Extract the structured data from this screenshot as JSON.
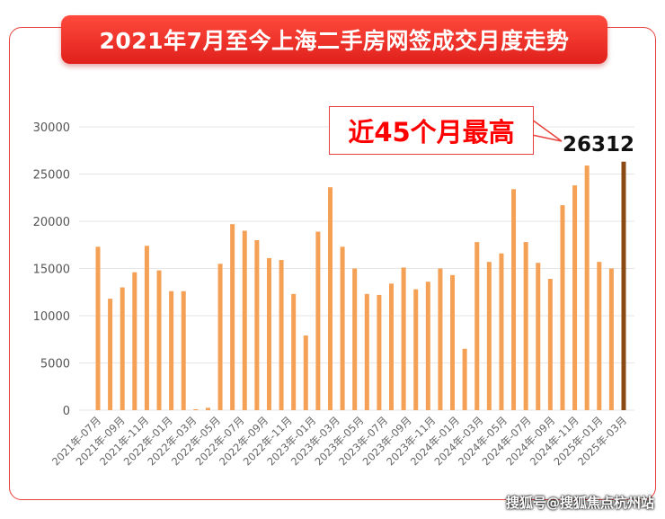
{
  "title": "2021年7月至今上海二手房网签成交月度走势",
  "annotation": {
    "label": "近45个月最高",
    "value": "26312"
  },
  "watermark": "搜狐号@搜狐焦点杭州站",
  "colors": {
    "bar": "#f4a055",
    "highlight_bar": "#8b4a14",
    "accent": "#e8423c"
  },
  "chart_data": {
    "type": "bar",
    "title": "2021年7月至今上海二手房网签成交月度走势",
    "xlabel": "",
    "ylabel": "",
    "ylim": [
      0,
      30000
    ],
    "yticks": [
      0,
      5000,
      10000,
      15000,
      20000,
      25000,
      30000
    ],
    "grid": true,
    "tick_labels": [
      "2021年-07月",
      "2021年-09月",
      "2021年-11月",
      "2022年-01月",
      "2022年-03月",
      "2022年-05月",
      "2022年-07月",
      "2022年-09月",
      "2022年-11月",
      "2023年-01月",
      "2023年-03月",
      "2023年-05月",
      "2023年-07月",
      "2023年-09月",
      "2023年-11月",
      "2024年-01月",
      "2024年-03月",
      "2024年-05月",
      "2024年-07月",
      "2024年-09月",
      "2024年-11月",
      "2025年-01月",
      "2025年-03月"
    ],
    "values": [
      17300,
      11800,
      13000,
      14600,
      17400,
      14800,
      12600,
      12600,
      100,
      250,
      15500,
      19700,
      19000,
      18000,
      16100,
      15900,
      12300,
      7900,
      18900,
      23600,
      17300,
      15000,
      12300,
      12200,
      13400,
      15100,
      12800,
      13600,
      15000,
      14300,
      6500,
      17800,
      15700,
      16600,
      23400,
      17800,
      15600,
      13900,
      21700,
      23800,
      25900,
      15700,
      15000,
      26312
    ],
    "highlight_index": 43
  }
}
